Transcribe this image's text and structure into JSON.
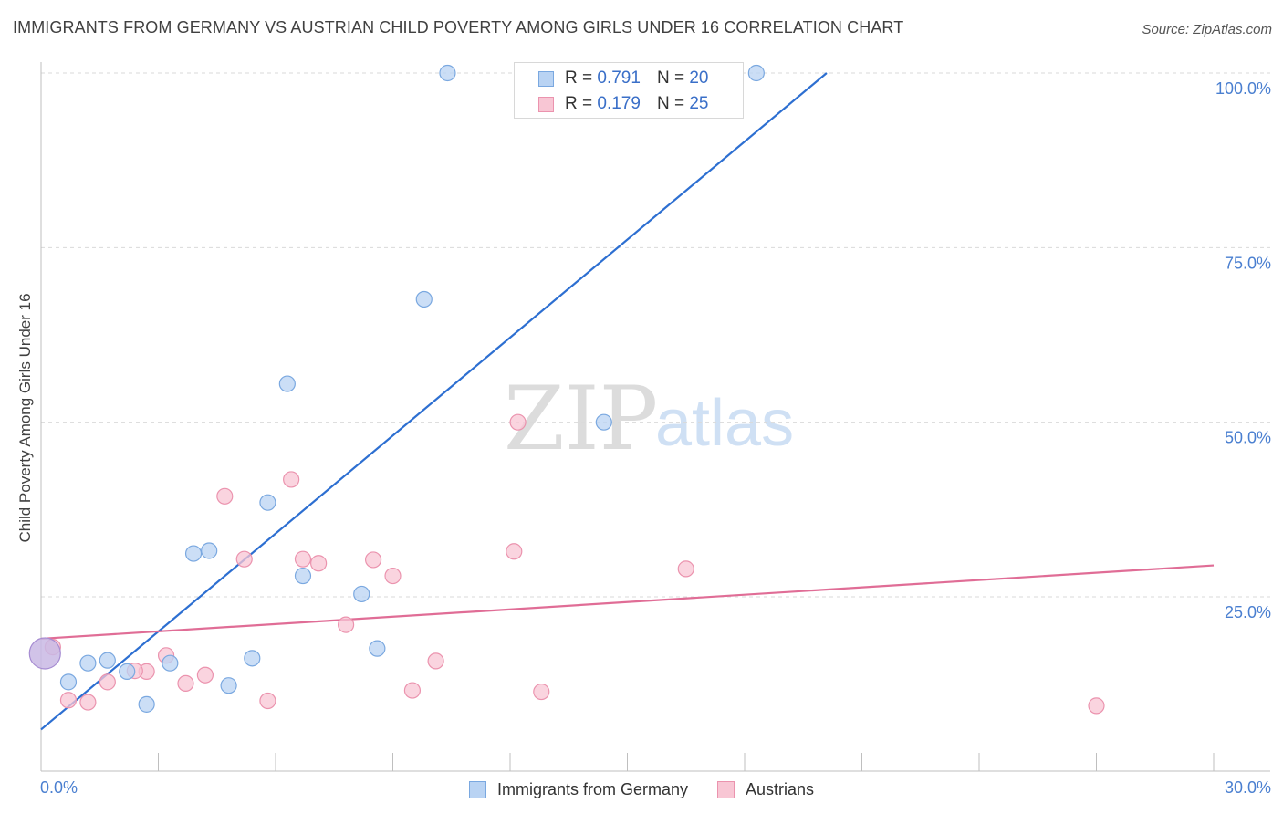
{
  "header": {
    "title": "IMMIGRANTS FROM GERMANY VS AUSTRIAN CHILD POVERTY AMONG GIRLS UNDER 16 CORRELATION CHART",
    "source": "Source: ZipAtlas.com"
  },
  "watermark": {
    "zip": "ZIP",
    "atlas": "atlas"
  },
  "colors": {
    "blue_fill": "#b9d3f3",
    "blue_stroke": "#7aa8e0",
    "blue_line": "#2d6fd1",
    "pink_fill": "#f8c6d4",
    "pink_stroke": "#eb93ae",
    "pink_line": "#e06d96",
    "big_dot_fill": "#c9b8e4",
    "big_dot_stroke": "#a68cd2"
  },
  "legend_top": {
    "rows": [
      {
        "r_key": "R =",
        "r_val": "0.791",
        "n_key": "N =",
        "n_val": "20"
      },
      {
        "r_key": "R =",
        "r_val": "0.179",
        "n_key": "N =",
        "n_val": "25"
      }
    ]
  },
  "chart_data": {
    "type": "scatter",
    "title": "IMMIGRANTS FROM GERMANY VS AUSTRIAN CHILD POVERTY AMONG GIRLS UNDER 16 CORRELATION CHART",
    "xlabel": "",
    "ylabel": "Child Poverty Among Girls Under 16",
    "xlim": [
      0,
      30
    ],
    "ylim": [
      0,
      102
    ],
    "x_tick_labels": [
      "0.0%",
      "30.0%"
    ],
    "y_ticks": [
      25,
      50,
      75,
      100
    ],
    "y_tick_labels": [
      "25.0%",
      "50.0%",
      "75.0%",
      "100.0%"
    ],
    "grid": "horizontal dashed",
    "legend_position": "bottom-center",
    "series": [
      {
        "name": "Immigrants from Germany",
        "points": [
          [
            0.7,
            12.8
          ],
          [
            1.2,
            15.5
          ],
          [
            1.7,
            15.9
          ],
          [
            2.2,
            14.3
          ],
          [
            2.7,
            9.6
          ],
          [
            3.3,
            15.5
          ],
          [
            3.9,
            31.2
          ],
          [
            4.3,
            31.6
          ],
          [
            4.8,
            12.3
          ],
          [
            5.4,
            16.2
          ],
          [
            5.8,
            38.5
          ],
          [
            6.3,
            55.5
          ],
          [
            6.7,
            28.0
          ],
          [
            8.2,
            25.4
          ],
          [
            8.6,
            17.6
          ],
          [
            9.8,
            67.6
          ],
          [
            10.4,
            100.0
          ],
          [
            14.4,
            50.0
          ],
          [
            18.3,
            100.0
          ],
          [
            0.1,
            16.9
          ]
        ],
        "trend": {
          "x": [
            0,
            20.1
          ],
          "y": [
            6.0,
            100.0
          ]
        }
      },
      {
        "name": "Austrians",
        "points": [
          [
            0.7,
            10.2
          ],
          [
            1.2,
            9.9
          ],
          [
            1.7,
            12.8
          ],
          [
            2.7,
            14.3
          ],
          [
            3.2,
            16.6
          ],
          [
            3.7,
            12.6
          ],
          [
            4.2,
            13.8
          ],
          [
            4.7,
            39.4
          ],
          [
            5.2,
            30.4
          ],
          [
            5.8,
            10.1
          ],
          [
            6.4,
            41.8
          ],
          [
            6.7,
            30.4
          ],
          [
            7.1,
            29.8
          ],
          [
            7.8,
            21.0
          ],
          [
            8.5,
            30.3
          ],
          [
            9.0,
            28.0
          ],
          [
            9.5,
            11.6
          ],
          [
            10.1,
            15.8
          ],
          [
            12.2,
            50.0
          ],
          [
            12.1,
            31.5
          ],
          [
            12.8,
            11.4
          ],
          [
            16.5,
            29.0
          ],
          [
            27.0,
            9.4
          ],
          [
            0.3,
            17.8
          ],
          [
            2.4,
            14.4
          ]
        ],
        "trend": {
          "x": [
            0,
            30
          ],
          "y": [
            19.0,
            29.5
          ]
        }
      }
    ]
  },
  "legend_bottom": {
    "items": [
      "Immigrants from Germany",
      "Austrians"
    ]
  }
}
